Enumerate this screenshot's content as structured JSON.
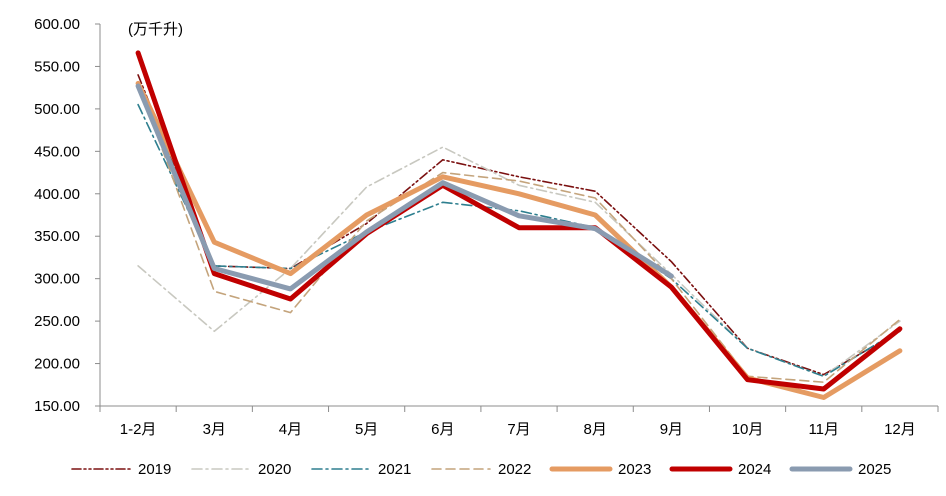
{
  "chart_data": {
    "type": "line",
    "title": "",
    "unit_label": "(万千升)",
    "xlabel": "",
    "ylabel": "",
    "categories": [
      "1-2月",
      "3月",
      "4月",
      "5月",
      "6月",
      "7月",
      "8月",
      "9月",
      "10月",
      "11月",
      "12月"
    ],
    "ylim": [
      150,
      600
    ],
    "yticks": [
      "150.00",
      "200.00",
      "250.00",
      "300.00",
      "350.00",
      "400.00",
      "450.00",
      "500.00",
      "550.00",
      "600.00"
    ],
    "grid": false,
    "legend_position": "bottom",
    "series": [
      {
        "name": "2019",
        "color": "#7b1010",
        "style": "dash-dot-dot",
        "values": [
          540,
          315,
          312,
          365,
          440,
          420,
          403,
          320,
          218,
          187,
          238
        ]
      },
      {
        "name": "2020",
        "color": "#c8c8c0",
        "style": "dash-dot",
        "values": [
          315,
          238,
          312,
          408,
          455,
          410,
          390,
          305,
          218,
          185,
          250
        ]
      },
      {
        "name": "2021",
        "color": "#2e7f8f",
        "style": "dash-dot",
        "values": [
          505,
          315,
          312,
          355,
          390,
          380,
          360,
          300,
          218,
          185,
          240
        ]
      },
      {
        "name": "2022",
        "color": "#c4a47c",
        "style": "dash",
        "values": [
          530,
          285,
          260,
          368,
          425,
          415,
          395,
          300,
          185,
          178,
          252
        ]
      },
      {
        "name": "2023",
        "color": "#e59b62",
        "style": "solid-thick",
        "values": [
          530,
          343,
          306,
          375,
          420,
          400,
          375,
          290,
          183,
          160,
          215
        ]
      },
      {
        "name": "2024",
        "color": "#c00000",
        "style": "solid-thick",
        "values": [
          566,
          306,
          276,
          353,
          410,
          360,
          360,
          290,
          181,
          170,
          241
        ]
      },
      {
        "name": "2025",
        "color": "#8a9bb0",
        "style": "solid-thick",
        "values": [
          527,
          312,
          288,
          355,
          413,
          374,
          359,
          303,
          null,
          null,
          null
        ]
      }
    ]
  }
}
